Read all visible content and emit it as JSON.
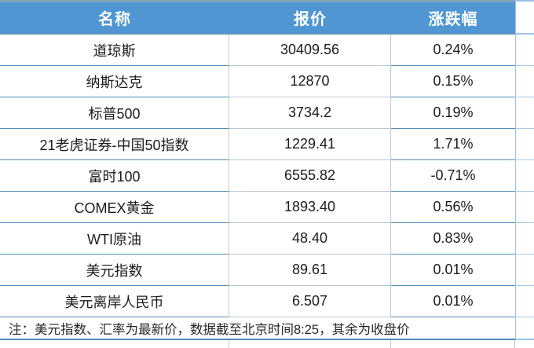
{
  "table": {
    "headers": [
      {
        "label": "名称"
      },
      {
        "label": "报价"
      },
      {
        "label": "涨跌幅"
      }
    ],
    "rows": [
      {
        "name": "道琼斯",
        "price": "30409.56",
        "change": "0.24%"
      },
      {
        "name": "纳斯达克",
        "price": "12870",
        "change": "0.15%"
      },
      {
        "name": "标普500",
        "price": "3734.2",
        "change": "0.19%"
      },
      {
        "name": "21老虎证券-中国50指数",
        "price": "1229.41",
        "change": "1.71%"
      },
      {
        "name": "富时100",
        "price": "6555.82",
        "change": "-0.71%"
      },
      {
        "name": "COMEX黄金",
        "price": "1893.40",
        "change": "0.56%"
      },
      {
        "name": "WTI原油",
        "price": "48.40",
        "change": "0.83%"
      },
      {
        "name": "美元指数",
        "price": "89.61",
        "change": "0.01%"
      },
      {
        "name": "美元离岸人民币",
        "price": "6.507",
        "change": "0.01%"
      }
    ],
    "note": "注：美元指数、汇率为最新价，数据截至北京时间8:25，其余为收盘价"
  },
  "colors": {
    "header_bg": "#4f96d2",
    "header_text": "#ffffff",
    "row_border_blue": "#4e8cb8",
    "column_border_gray": "#c9c9c9",
    "right_divider_blue": "#9cc3e6",
    "body_text": "#1c1c1c"
  }
}
